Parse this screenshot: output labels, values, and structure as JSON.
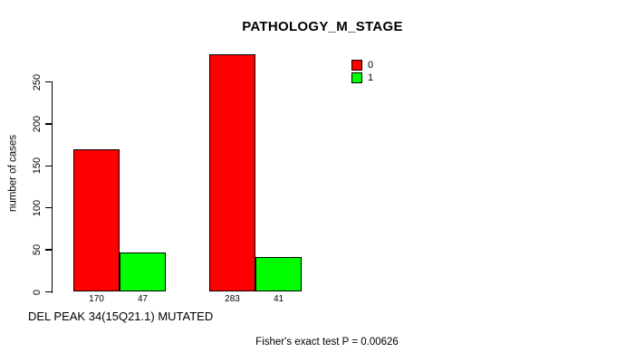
{
  "title": "PATHOLOGY_M_STAGE",
  "y_axis": {
    "label": "number of cases",
    "ticks": [
      "0",
      "50",
      "100",
      "150",
      "200",
      "250"
    ]
  },
  "x_axis": {
    "label": "DEL PEAK 34(15Q21.1) MUTATED"
  },
  "footer": "Fisher's exact test P = 0.00626",
  "legend": [
    {
      "label": "0",
      "color": "#ff0000"
    },
    {
      "label": "1",
      "color": "#00ff00"
    }
  ],
  "colors": {
    "bar_red": "#ff0000",
    "bar_green": "#00ff00",
    "axis": "#000000",
    "background": "#ffffff"
  },
  "chart_data": {
    "type": "bar",
    "title": "PATHOLOGY_M_STAGE",
    "xlabel": "DEL PEAK 34(15Q21.1) MUTATED",
    "ylabel": "number of cases",
    "ylim": [
      0,
      290
    ],
    "yticks": [
      0,
      50,
      100,
      150,
      200,
      250
    ],
    "grid": false,
    "legend_position": "top-right",
    "categories": [
      "",
      ""
    ],
    "series": [
      {
        "name": "0",
        "color": "#ff0000",
        "values": [
          170,
          283
        ]
      },
      {
        "name": "1",
        "color": "#00ff00",
        "values": [
          47,
          41
        ]
      }
    ],
    "bar_value_labels": [
      [
        "170",
        "47"
      ],
      [
        "283",
        "41"
      ]
    ],
    "annotation": "Fisher's exact test P = 0.00626"
  }
}
